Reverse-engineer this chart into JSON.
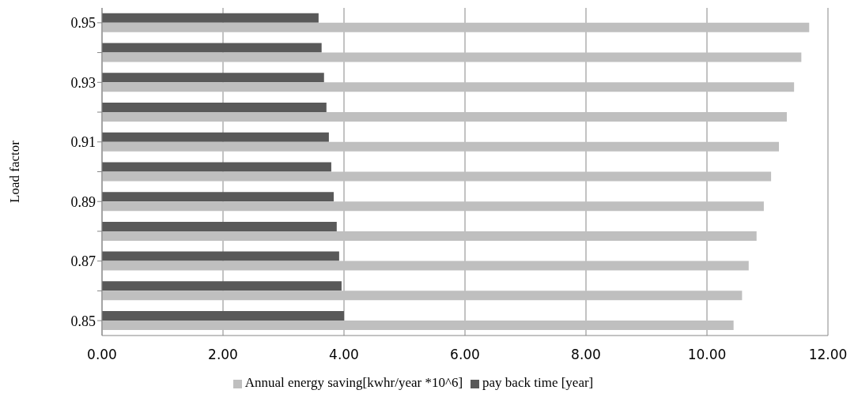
{
  "chart_data": {
    "type": "bar",
    "orientation": "horizontal",
    "ylabel": "Load factor",
    "categories": [
      "0.95",
      null,
      "0.93",
      null,
      "0.91",
      null,
      "0.89",
      null,
      "0.87",
      null,
      "0.85"
    ],
    "series": [
      {
        "name": "pay back time [year]",
        "color": "#595959",
        "values": [
          3.58,
          3.63,
          3.67,
          3.71,
          3.75,
          3.79,
          3.83,
          3.88,
          3.92,
          3.96,
          4.0
        ]
      },
      {
        "name": "Annual energy saving[kwhr/year *10^6]",
        "color": "#bfbfbf",
        "values": [
          11.69,
          11.56,
          11.44,
          11.32,
          11.19,
          11.06,
          10.94,
          10.82,
          10.69,
          10.58,
          10.44
        ]
      }
    ],
    "xlim": [
      0,
      12
    ],
    "xticks": [
      {
        "value": 0,
        "label": "0.00"
      },
      {
        "value": 2,
        "label": "2.00"
      },
      {
        "value": 4,
        "label": "4.00"
      },
      {
        "value": 6,
        "label": "6.00"
      },
      {
        "value": 8,
        "label": "8.00"
      },
      {
        "value": 10,
        "label": "10.00"
      },
      {
        "value": 12,
        "label": "12.00"
      }
    ],
    "grid": "x",
    "legend": "bottom"
  }
}
